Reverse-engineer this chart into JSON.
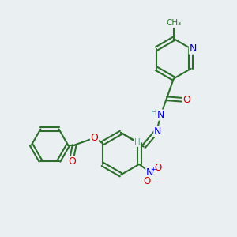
{
  "background_color": "#eaeff2",
  "bond_color": "#2d6e2d",
  "bond_width": 1.5,
  "atom_colors": {
    "N": "#0000cc",
    "O": "#cc0000",
    "C": "#2d6e2d",
    "H": "#6a9a9a"
  },
  "font_size": 9,
  "font_size_small": 7.5
}
